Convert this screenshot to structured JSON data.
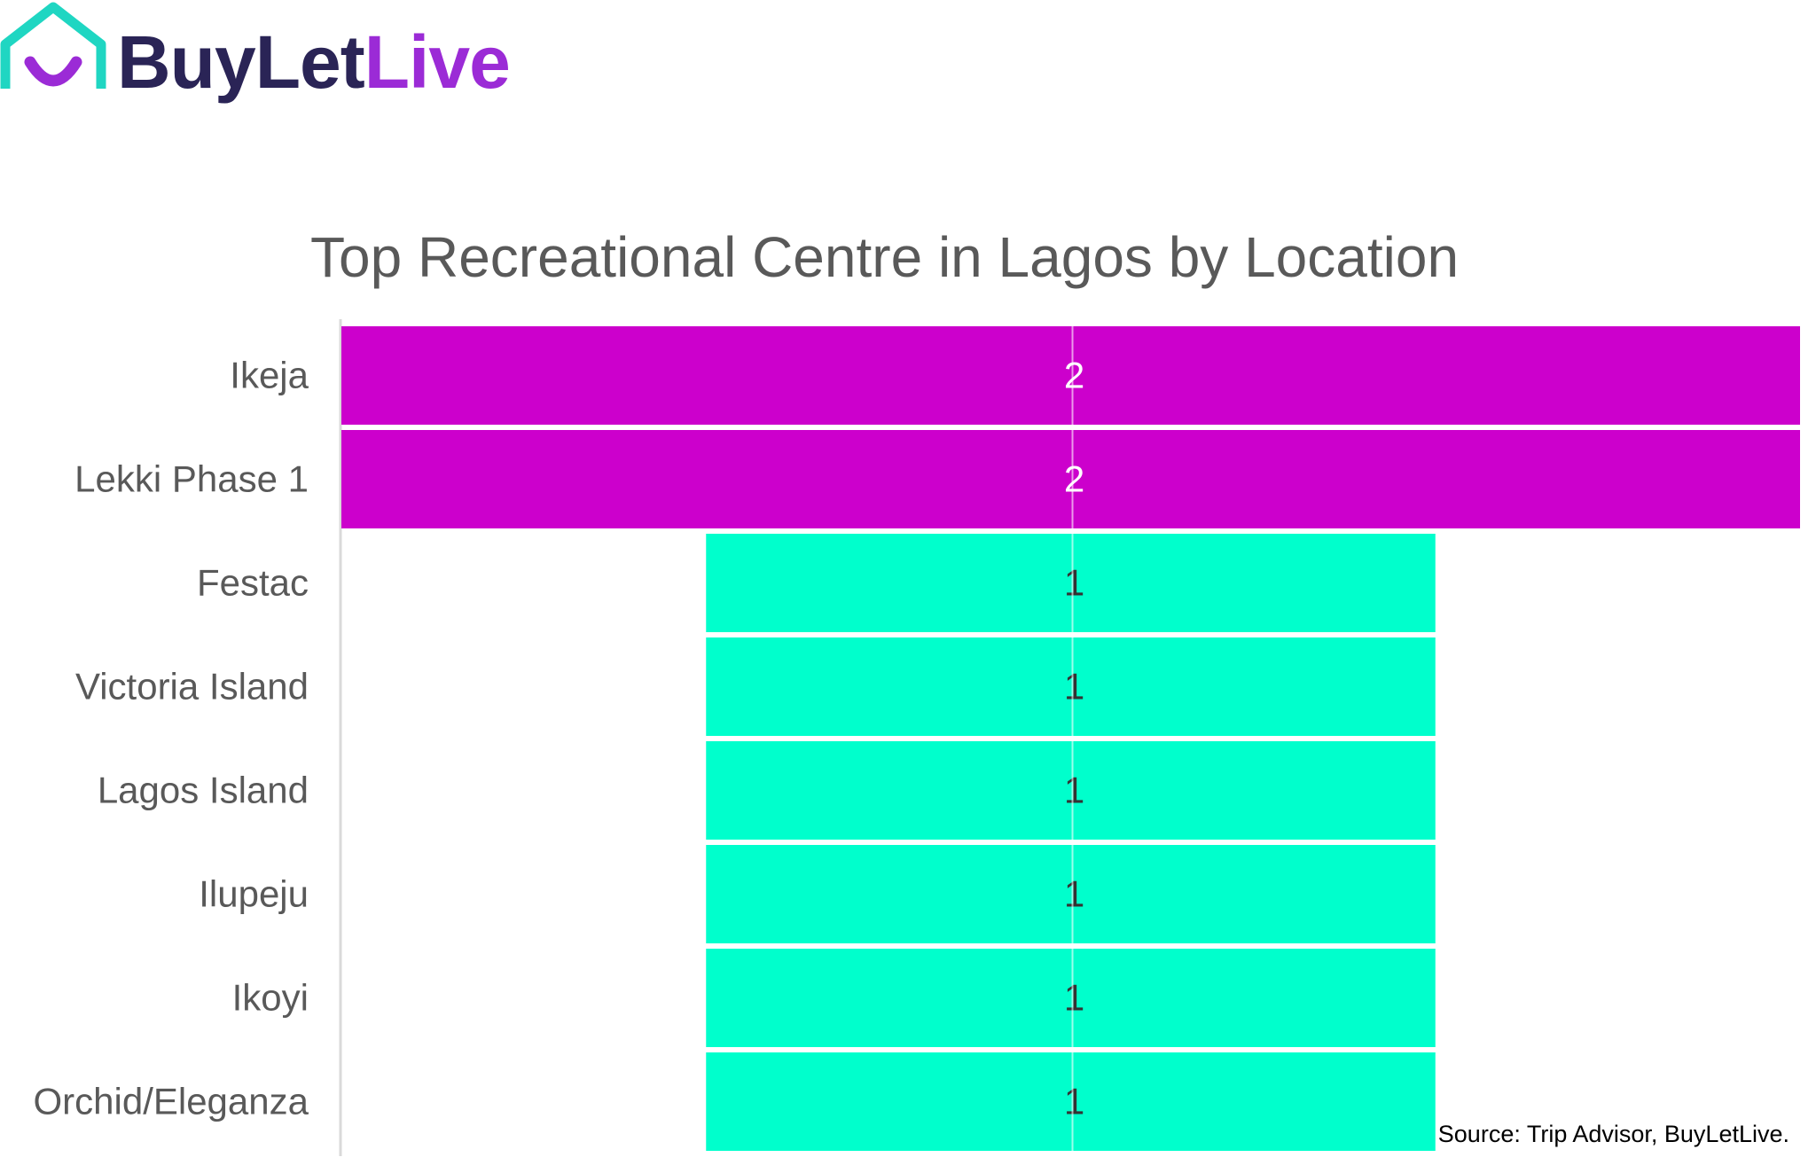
{
  "brand": {
    "name_part1": "BuyLet",
    "name_part2": "Live",
    "icon": "house-smile-icon",
    "colors": {
      "dark": "#2a2456",
      "purple": "#9b2bd6",
      "teal": "#1fd6c2"
    }
  },
  "chart_data": {
    "type": "bar",
    "orientation": "horizontal-centered",
    "title": "Top Recreational Centre in Lagos by Location",
    "categories": [
      "Ikeja",
      "Lekki Phase 1",
      "Festac",
      "Victoria Island",
      "Lagos Island",
      "Ilupeju",
      "Ikoyi",
      "Orchid/Eleganza"
    ],
    "values": [
      2,
      2,
      1,
      1,
      1,
      1,
      1,
      1
    ],
    "data_labels": [
      "2",
      "2",
      "1",
      "1",
      "1",
      "1",
      "1",
      "1"
    ],
    "xlim": [
      0,
      2
    ],
    "grid": false,
    "legend": "none",
    "colors": {
      "high": "#cc00cc",
      "low": "#00ffcc",
      "label_on_high": "#ffffff",
      "label_on_low": "#333333",
      "category_text": "#595959",
      "axis": "#d9d9d9"
    }
  },
  "source": "Source: Trip Advisor, BuyLetLive."
}
